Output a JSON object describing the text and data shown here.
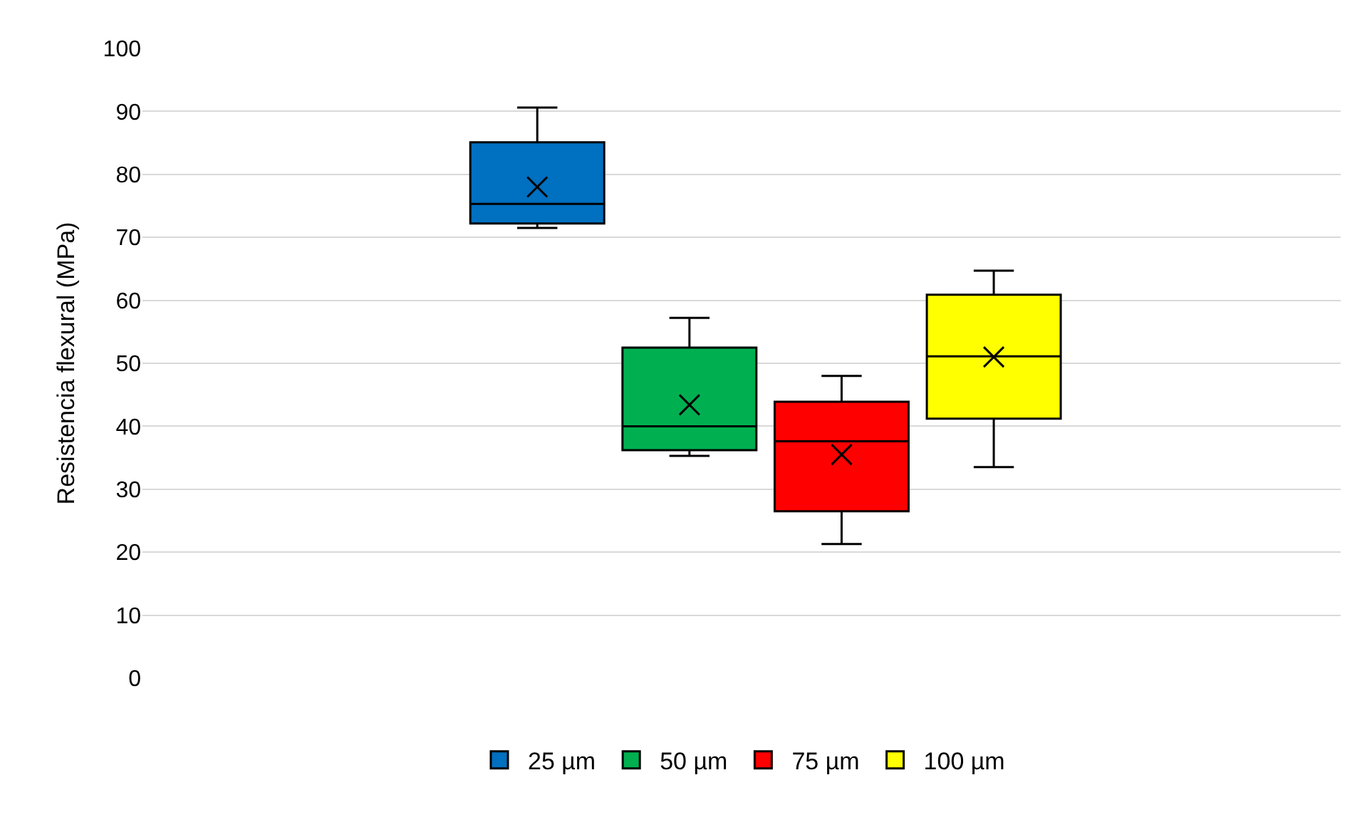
{
  "chart_data": {
    "type": "box",
    "ylabel": "Resistencia flexural (MPa)",
    "categories": [
      null
    ],
    "ylim": [
      0,
      100
    ],
    "yticks": [
      0,
      10,
      20,
      30,
      40,
      50,
      60,
      70,
      80,
      90,
      100
    ],
    "grid": "y",
    "legend": "bottom",
    "series": [
      {
        "name": "25 µm",
        "color": "#0070c0",
        "boxes": [
          {
            "low": 71.5,
            "q1": 72.2,
            "median": 75.3,
            "q3": 85.1,
            "high": 90.6,
            "mean": 78.0
          }
        ]
      },
      {
        "name": "50 µm",
        "color": "#00b050",
        "boxes": [
          {
            "low": 35.3,
            "q1": 36.2,
            "median": 40.0,
            "q3": 52.5,
            "high": 57.2,
            "mean": 43.4
          }
        ]
      },
      {
        "name": "75 µm",
        "color": "#ff0000",
        "boxes": [
          {
            "low": 21.3,
            "q1": 26.5,
            "median": 37.6,
            "q3": 43.9,
            "high": 48.0,
            "mean": 35.5
          }
        ]
      },
      {
        "name": "100 µm",
        "color": "#ffff00",
        "boxes": [
          {
            "low": 33.5,
            "q1": 41.2,
            "median": 51.1,
            "q3": 60.9,
            "high": 64.7,
            "mean": 51.0
          }
        ]
      }
    ]
  }
}
